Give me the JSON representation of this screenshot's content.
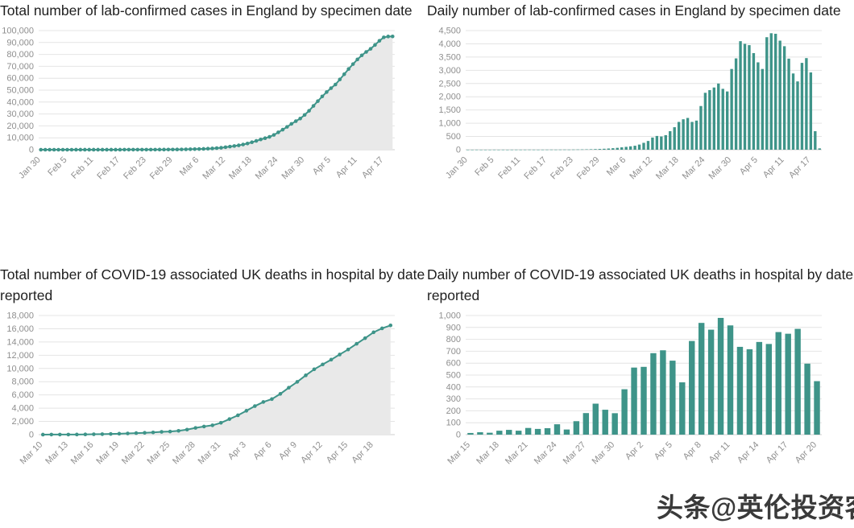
{
  "watermark": {
    "text": "头条@英伦投资客"
  },
  "colors": {
    "series": "#3e9489",
    "area": "#e9e9e9",
    "grid": "#e4e4e4",
    "baseline": "#cfcfcf",
    "axis_text": "#8f8f8f",
    "title_text": "#1f1f1f",
    "watermark_text": "#3a3a3a",
    "background": "#ffffff"
  },
  "chart_data": [
    {
      "type": "area",
      "title": "Total number of lab-confirmed cases in England by specimen date",
      "ylabel": "",
      "xlabel": "",
      "ylim": [
        0,
        100000
      ],
      "ytick": 10000,
      "xtick_every": 6,
      "grid": true,
      "legend": "none",
      "categories": [
        "Jan 30",
        "Jan 31",
        "Feb 1",
        "Feb 2",
        "Feb 3",
        "Feb 4",
        "Feb 5",
        "Feb 6",
        "Feb 7",
        "Feb 8",
        "Feb 9",
        "Feb 10",
        "Feb 11",
        "Feb 12",
        "Feb 13",
        "Feb 14",
        "Feb 15",
        "Feb 16",
        "Feb 17",
        "Feb 18",
        "Feb 19",
        "Feb 20",
        "Feb 21",
        "Feb 22",
        "Feb 23",
        "Feb 24",
        "Feb 25",
        "Feb 26",
        "Feb 27",
        "Feb 28",
        "Feb 29",
        "Mar 1",
        "Mar 2",
        "Mar 3",
        "Mar 4",
        "Mar 5",
        "Mar 6",
        "Mar 7",
        "Mar 8",
        "Mar 9",
        "Mar 10",
        "Mar 11",
        "Mar 12",
        "Mar 13",
        "Mar 14",
        "Mar 15",
        "Mar 16",
        "Mar 17",
        "Mar 18",
        "Mar 19",
        "Mar 20",
        "Mar 21",
        "Mar 22",
        "Mar 23",
        "Mar 24",
        "Mar 25",
        "Mar 26",
        "Mar 27",
        "Mar 28",
        "Mar 29",
        "Mar 30",
        "Mar 31",
        "Apr 1",
        "Apr 2",
        "Apr 3",
        "Apr 4",
        "Apr 5",
        "Apr 6",
        "Apr 7",
        "Apr 8",
        "Apr 9",
        "Apr 10",
        "Apr 11",
        "Apr 12",
        "Apr 13",
        "Apr 14",
        "Apr 15",
        "Apr 16",
        "Apr 17",
        "Apr 18",
        "Apr 19"
      ],
      "values": [
        1,
        2,
        4,
        5,
        6,
        7,
        9,
        10,
        12,
        13,
        15,
        18,
        20,
        23,
        27,
        30,
        32,
        35,
        39,
        44,
        48,
        53,
        59,
        64,
        71,
        80,
        91,
        105,
        123,
        146,
        174,
        210,
        255,
        312,
        383,
        472,
        580,
        708,
        858,
        1052,
        1312,
        1642,
        2102,
        2622,
        3122,
        3672,
        4372,
        5222,
        6272,
        7422,
        8622,
        9672,
        10772,
        12422,
        14572,
        16822,
        19172,
        21672,
        23972,
        26172,
        29222,
        32672,
        36772,
        40772,
        44722,
        48372,
        51672,
        54722,
        58972,
        63372,
        67752,
        71872,
        75782,
        79222,
        82102,
        84682,
        87962,
        91422,
        94342,
        95042,
        95092
      ]
    },
    {
      "type": "bar",
      "title": "Daily number of lab-confirmed cases in England by specimen date",
      "ylabel": "",
      "xlabel": "",
      "ylim": [
        0,
        4500
      ],
      "ytick": 500,
      "xtick_every": 6,
      "grid": true,
      "legend": "none",
      "categories": [
        "Jan 30",
        "Jan 31",
        "Feb 1",
        "Feb 2",
        "Feb 3",
        "Feb 4",
        "Feb 5",
        "Feb 6",
        "Feb 7",
        "Feb 8",
        "Feb 9",
        "Feb 10",
        "Feb 11",
        "Feb 12",
        "Feb 13",
        "Feb 14",
        "Feb 15",
        "Feb 16",
        "Feb 17",
        "Feb 18",
        "Feb 19",
        "Feb 20",
        "Feb 21",
        "Feb 22",
        "Feb 23",
        "Feb 24",
        "Feb 25",
        "Feb 26",
        "Feb 27",
        "Feb 28",
        "Feb 29",
        "Mar 1",
        "Mar 2",
        "Mar 3",
        "Mar 4",
        "Mar 5",
        "Mar 6",
        "Mar 7",
        "Mar 8",
        "Mar 9",
        "Mar 10",
        "Mar 11",
        "Mar 12",
        "Mar 13",
        "Mar 14",
        "Mar 15",
        "Mar 16",
        "Mar 17",
        "Mar 18",
        "Mar 19",
        "Mar 20",
        "Mar 21",
        "Mar 22",
        "Mar 23",
        "Mar 24",
        "Mar 25",
        "Mar 26",
        "Mar 27",
        "Mar 28",
        "Mar 29",
        "Mar 30",
        "Mar 31",
        "Apr 1",
        "Apr 2",
        "Apr 3",
        "Apr 4",
        "Apr 5",
        "Apr 6",
        "Apr 7",
        "Apr 8",
        "Apr 9",
        "Apr 10",
        "Apr 11",
        "Apr 12",
        "Apr 13",
        "Apr 14",
        "Apr 15",
        "Apr 16",
        "Apr 17",
        "Apr 18",
        "Apr 19"
      ],
      "values": [
        1,
        1,
        2,
        1,
        1,
        1,
        2,
        1,
        2,
        1,
        2,
        3,
        2,
        3,
        4,
        3,
        2,
        3,
        4,
        5,
        4,
        5,
        6,
        5,
        7,
        9,
        11,
        14,
        18,
        23,
        28,
        36,
        45,
        57,
        71,
        89,
        108,
        128,
        150,
        194,
        260,
        330,
        460,
        520,
        500,
        550,
        700,
        850,
        1050,
        1150,
        1200,
        1050,
        1100,
        1650,
        2150,
        2250,
        2350,
        2500,
        2300,
        2200,
        3050,
        3450,
        4100,
        4000,
        3950,
        3650,
        3300,
        3050,
        4250,
        4400,
        4380,
        4120,
        3910,
        3440,
        2880,
        2580,
        3280,
        3460,
        2920,
        700,
        50
      ]
    },
    {
      "type": "area",
      "title": "Total number of COVID-19 associated UK deaths in hospital by date reported",
      "ylabel": "",
      "xlabel": "",
      "ylim": [
        0,
        18000
      ],
      "ytick": 2000,
      "xtick_every": 3,
      "grid": true,
      "legend": "none",
      "categories": [
        "Mar 10",
        "Mar 11",
        "Mar 12",
        "Mar 13",
        "Mar 14",
        "Mar 15",
        "Mar 16",
        "Mar 17",
        "Mar 18",
        "Mar 19",
        "Mar 20",
        "Mar 21",
        "Mar 22",
        "Mar 23",
        "Mar 24",
        "Mar 25",
        "Mar 26",
        "Mar 27",
        "Mar 28",
        "Mar 29",
        "Mar 30",
        "Mar 31",
        "Apr 1",
        "Apr 2",
        "Apr 3",
        "Apr 4",
        "Apr 5",
        "Apr 6",
        "Apr 7",
        "Apr 8",
        "Apr 9",
        "Apr 10",
        "Apr 11",
        "Apr 12",
        "Apr 13",
        "Apr 14",
        "Apr 15",
        "Apr 16",
        "Apr 17",
        "Apr 18",
        "Apr 19",
        "Apr 20"
      ],
      "values": [
        6,
        8,
        8,
        10,
        21,
        35,
        55,
        71,
        104,
        144,
        177,
        233,
        281,
        335,
        422,
        465,
        578,
        759,
        1019,
        1228,
        1408,
        1789,
        2352,
        2921,
        3605,
        4313,
        4934,
        5373,
        6159,
        7097,
        7978,
        8958,
        9875,
        10612,
        11329,
        12107,
        12868,
        13729,
        14576,
        15464,
        16060,
        16509
      ]
    },
    {
      "type": "bar",
      "title": "Daily number of COVID-19 associated UK deaths in hospital by date reported",
      "ylabel": "",
      "xlabel": "",
      "ylim": [
        0,
        1000
      ],
      "ytick": 100,
      "xtick_every": 3,
      "grid": true,
      "legend": "none",
      "categories": [
        "Mar 15",
        "Mar 16",
        "Mar 17",
        "Mar 18",
        "Mar 19",
        "Mar 20",
        "Mar 21",
        "Mar 22",
        "Mar 23",
        "Mar 24",
        "Mar 25",
        "Mar 26",
        "Mar 27",
        "Mar 28",
        "Mar 29",
        "Mar 30",
        "Mar 31",
        "Apr 1",
        "Apr 2",
        "Apr 3",
        "Apr 4",
        "Apr 5",
        "Apr 6",
        "Apr 7",
        "Apr 8",
        "Apr 9",
        "Apr 10",
        "Apr 11",
        "Apr 12",
        "Apr 13",
        "Apr 14",
        "Apr 15",
        "Apr 16",
        "Apr 17",
        "Apr 18",
        "Apr 19",
        "Apr 20"
      ],
      "values": [
        14,
        20,
        16,
        33,
        40,
        33,
        56,
        48,
        54,
        87,
        43,
        113,
        181,
        260,
        209,
        180,
        381,
        563,
        569,
        684,
        708,
        621,
        439,
        786,
        938,
        881,
        980,
        917,
        737,
        717,
        778,
        761,
        861,
        847,
        888,
        596,
        449
      ]
    }
  ]
}
